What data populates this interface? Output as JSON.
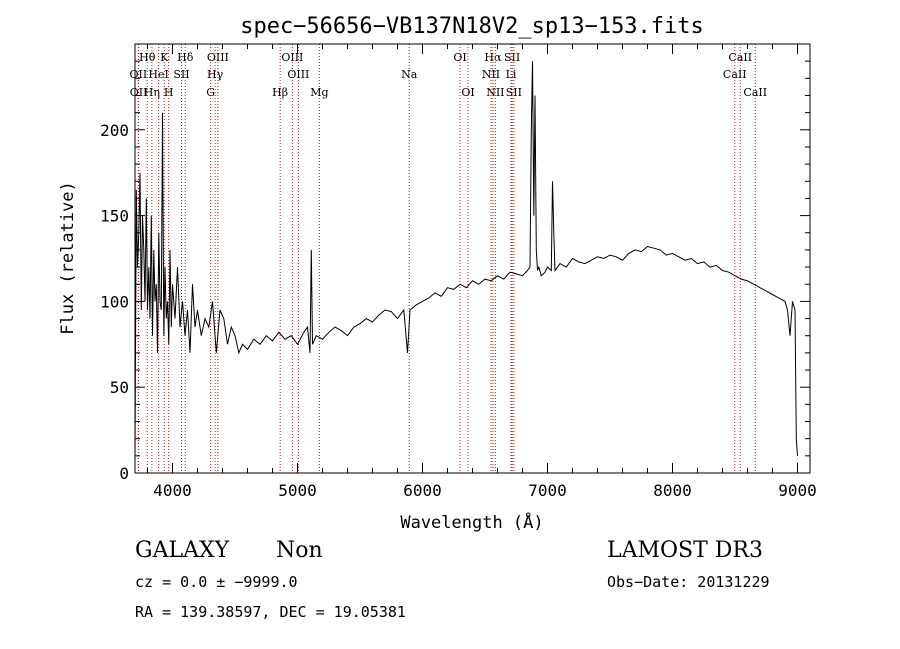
{
  "chart_data": {
    "type": "line",
    "title": "spec−56656−VB137N18V2_sp13−153.fits",
    "xlabel": "Wavelength (Å)",
    "ylabel": "Flux (relative)",
    "xlim": [
      3700,
      9100
    ],
    "ylim": [
      0,
      250
    ],
    "xticks": [
      4000,
      5000,
      6000,
      7000,
      8000,
      9000
    ],
    "xtick_labels": [
      "4000",
      "5000",
      "6000",
      "7000",
      "8000",
      "9000"
    ],
    "yticks": [
      0,
      50,
      100,
      150,
      200
    ],
    "ytick_labels": [
      "0",
      "50",
      "100",
      "150",
      "200"
    ],
    "grid": false,
    "line_color": "#000000",
    "marker_color": "#b22222",
    "series": [
      {
        "x": [
          3700,
          3710,
          3720,
          3730,
          3740,
          3750,
          3760,
          3770,
          3780,
          3790,
          3800,
          3810,
          3820,
          3830,
          3840,
          3850,
          3860,
          3870,
          3880,
          3890,
          3900,
          3910,
          3920,
          3930,
          3940,
          3950,
          3960,
          3970,
          3980,
          3990,
          4000,
          4020,
          4040,
          4060,
          4080,
          4100,
          4120,
          4140,
          4160,
          4180,
          4200,
          4230,
          4260,
          4290,
          4320,
          4350,
          4380,
          4410,
          4440,
          4470,
          4500,
          4530,
          4560,
          4600,
          4650,
          4700,
          4750,
          4800,
          4850,
          4900,
          4950,
          5000,
          5050,
          5080,
          5100,
          5110,
          5120,
          5150,
          5200,
          5250,
          5300,
          5350,
          5400,
          5450,
          5500,
          5550,
          5600,
          5650,
          5700,
          5750,
          5800,
          5850,
          5880,
          5900,
          5950,
          6000,
          6050,
          6100,
          6150,
          6200,
          6250,
          6300,
          6350,
          6400,
          6450,
          6500,
          6550,
          6600,
          6650,
          6700,
          6750,
          6800,
          6840,
          6860,
          6870,
          6880,
          6890,
          6900,
          6910,
          6920,
          6930,
          6950,
          6980,
          7000,
          7030,
          7040,
          7050,
          7060,
          7080,
          7100,
          7150,
          7200,
          7250,
          7300,
          7350,
          7400,
          7450,
          7500,
          7550,
          7600,
          7650,
          7700,
          7750,
          7800,
          7850,
          7900,
          7950,
          8000,
          8050,
          8100,
          8150,
          8200,
          8250,
          8300,
          8350,
          8400,
          8450,
          8500,
          8550,
          8600,
          8650,
          8700,
          8750,
          8800,
          8850,
          8900,
          8920,
          8940,
          8960,
          8980,
          8990,
          9000
        ],
        "y": [
          10,
          165,
          120,
          140,
          175,
          95,
          150,
          130,
          100,
          160,
          95,
          120,
          90,
          150,
          80,
          130,
          100,
          110,
          70,
          140,
          100,
          95,
          210,
          80,
          120,
          90,
          100,
          75,
          130,
          85,
          110,
          90,
          120,
          85,
          100,
          80,
          95,
          70,
          110,
          85,
          95,
          80,
          90,
          85,
          100,
          70,
          95,
          90,
          75,
          85,
          80,
          70,
          75,
          72,
          78,
          75,
          80,
          77,
          82,
          78,
          80,
          75,
          82,
          85,
          70,
          130,
          75,
          80,
          78,
          82,
          85,
          83,
          80,
          85,
          87,
          90,
          88,
          92,
          95,
          94,
          90,
          95,
          70,
          95,
          98,
          100,
          102,
          105,
          103,
          108,
          107,
          110,
          108,
          112,
          110,
          113,
          112,
          115,
          113,
          117,
          116,
          115,
          118,
          120,
          200,
          240,
          150,
          220,
          130,
          118,
          120,
          115,
          117,
          120,
          118,
          170,
          140,
          118,
          120,
          122,
          120,
          125,
          123,
          122,
          124,
          126,
          125,
          127,
          126,
          124,
          128,
          130,
          129,
          132,
          131,
          130,
          127,
          128,
          126,
          124,
          125,
          122,
          123,
          120,
          121,
          118,
          117,
          115,
          113,
          112,
          110,
          108,
          106,
          104,
          102,
          100,
          95,
          80,
          100,
          95,
          20,
          10
        ]
      }
    ],
    "line_markers": [
      {
        "label": "Hθ",
        "x": 3798,
        "row": 1
      },
      {
        "label": "OII",
        "x": 3727,
        "row": 2
      },
      {
        "label": "OII",
        "x": 3729,
        "row": 3
      },
      {
        "label": "K",
        "x": 3934,
        "row": 1
      },
      {
        "label": "HeI",
        "x": 3889,
        "row": 2
      },
      {
        "label": "Hη",
        "x": 3835,
        "row": 3
      },
      {
        "label": "Hδ",
        "x": 4102,
        "row": 1
      },
      {
        "label": "SII",
        "x": 4072,
        "row": 2
      },
      {
        "label": "H",
        "x": 3969,
        "row": 3
      },
      {
        "label": "OIII",
        "x": 4363,
        "row": 1
      },
      {
        "label": "Hγ",
        "x": 4341,
        "row": 2
      },
      {
        "label": "G",
        "x": 4305,
        "row": 3
      },
      {
        "label": "OIII",
        "x": 4959,
        "row": 1
      },
      {
        "label": "OIII",
        "x": 5007,
        "row": 2
      },
      {
        "label": "Hβ",
        "x": 4861,
        "row": 3
      },
      {
        "label": "Mg",
        "x": 5175,
        "row": 3
      },
      {
        "label": "Na",
        "x": 5894,
        "row": 2
      },
      {
        "label": "OI",
        "x": 6300,
        "row": 1
      },
      {
        "label": "OI",
        "x": 6364,
        "row": 3
      },
      {
        "label": "Hα",
        "x": 6563,
        "row": 1
      },
      {
        "label": "NII",
        "x": 6548,
        "row": 2
      },
      {
        "label": "NII",
        "x": 6583,
        "row": 3
      },
      {
        "label": "SII",
        "x": 6717,
        "row": 1
      },
      {
        "label": "Li",
        "x": 6708,
        "row": 2
      },
      {
        "label": "SII",
        "x": 6731,
        "row": 3
      },
      {
        "label": "CaII",
        "x": 8542,
        "row": 1
      },
      {
        "label": "CaII",
        "x": 8498,
        "row": 2
      },
      {
        "label": "CaII",
        "x": 8662,
        "row": 3
      }
    ]
  },
  "footer": {
    "object_class": "GALAXY",
    "subclass": "Non",
    "cz_line": "cz = 0.0 ± −9999.0",
    "radec_line": "RA = 139.38597, DEC =  19.05381",
    "survey": "LAMOST DR3",
    "obs_date": "Obs−Date: 20131229"
  }
}
